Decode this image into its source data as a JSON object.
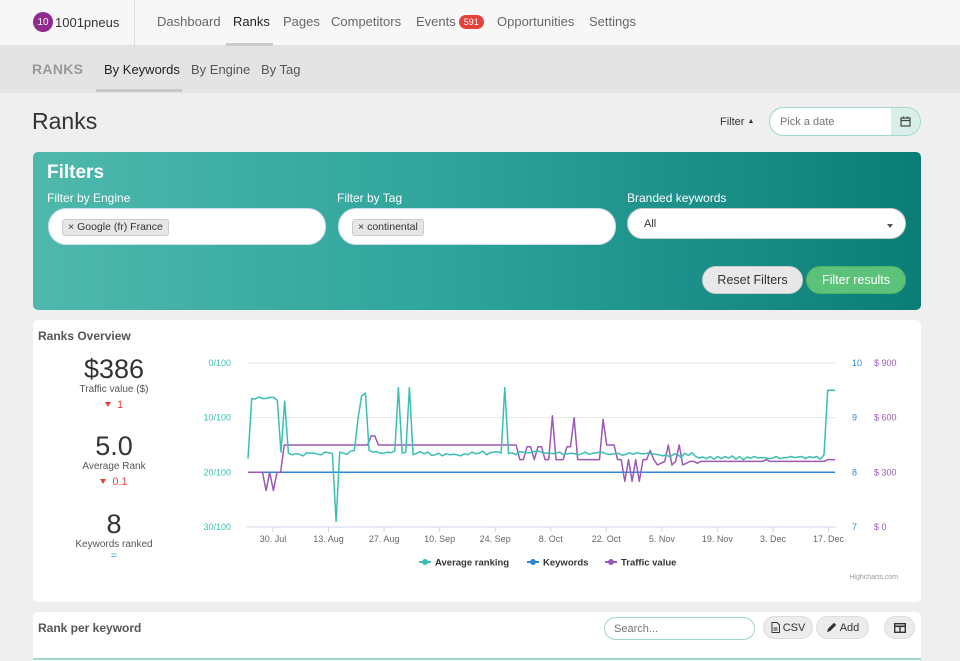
{
  "brand": {
    "badge": "10",
    "name": "1001pneus"
  },
  "nav": {
    "items": [
      {
        "label": "Dashboard"
      },
      {
        "label": "Ranks"
      },
      {
        "label": "Pages"
      },
      {
        "label": "Competitors"
      },
      {
        "label": "Events",
        "badge": "591"
      },
      {
        "label": "Opportunities"
      },
      {
        "label": "Settings"
      }
    ],
    "active": "Ranks"
  },
  "subnav": {
    "title": "RANKS",
    "items": [
      {
        "label": "By Keywords"
      },
      {
        "label": "By Engine"
      },
      {
        "label": "By Tag"
      }
    ],
    "active": "By Keywords"
  },
  "page": {
    "title": "Ranks",
    "filter_toggle": "Filter",
    "date_placeholder": "Pick a date"
  },
  "filters": {
    "title": "Filters",
    "engine_label": "Filter by Engine",
    "engine_tag": "Google (fr) France",
    "tag_label": "Filter by Tag",
    "tag_value": "continental",
    "branded_label": "Branded keywords",
    "branded_value": "All",
    "reset_label": "Reset Filters",
    "apply_label": "Filter results"
  },
  "overview": {
    "title": "Ranks Overview",
    "traffic_value": "$386",
    "traffic_label": "Traffic value ($)",
    "traffic_delta": "1",
    "avg_rank": "5.0",
    "avg_rank_label": "Average Rank",
    "avg_rank_delta": "0.1",
    "keywords_ranked": "8",
    "keywords_label": "Keywords ranked",
    "keywords_delta": "="
  },
  "chart_data": {
    "type": "line",
    "x_ticks": [
      "30. Jul",
      "13. Aug",
      "27. Aug",
      "10. Sep",
      "24. Sep",
      "8. Oct",
      "22. Oct",
      "5. Nov",
      "19. Nov",
      "3. Dec",
      "17. Dec"
    ],
    "y_left_ticks": [
      "0/100",
      "10/100",
      "20/100",
      "30/100"
    ],
    "y_mid_ticks": [
      "10",
      "9",
      "8",
      "7"
    ],
    "y_right_ticks": [
      "$ 900",
      "$ 600",
      "$ 300",
      "$ 0"
    ],
    "axes": {
      "average_ranking": {
        "min": 0,
        "max": 30,
        "reversed": true
      },
      "keywords": {
        "min": 7,
        "max": 10
      },
      "traffic_value": {
        "min": 0,
        "max": 900
      }
    },
    "x_range": [
      "2023-07-23",
      "2023-12-19"
    ],
    "series": [
      {
        "name": "Average ranking",
        "color": "#3bbfb4",
        "values": [
          17.5,
          6.5,
          6.6,
          6.2,
          6.5,
          6.5,
          6.3,
          6.3,
          6.8,
          16.3,
          7,
          16.5,
          16.8,
          16.6,
          16.7,
          17,
          16.4,
          16.5,
          16.5,
          16.7,
          16.8,
          16.3,
          16.4,
          16.6,
          29,
          16.3,
          16.5,
          16.7,
          16.1,
          16,
          10,
          6,
          5.5,
          16,
          16.3,
          16.2,
          16.5,
          16.5,
          16.3,
          16.4,
          16.1,
          4.5,
          16.5,
          16.3,
          4.5,
          16.8,
          16.5,
          16.2,
          16.6,
          16.3,
          16.9,
          16.8,
          16.5,
          17,
          16.6,
          16.8,
          16.7,
          16.8,
          17,
          16.6,
          16.8,
          16.3,
          16.6,
          16.5,
          16.1,
          16.8,
          16.4,
          16.3,
          16.2,
          16.5,
          4.5,
          16.6,
          16.4,
          16.8,
          16.2,
          16.3,
          16.4,
          16.4,
          16.2,
          16.1,
          16.3,
          16.5,
          16.4,
          16.6,
          16.5,
          16.3,
          16.8,
          16.6,
          16.5,
          16.6,
          16.8,
          16.6,
          16.3,
          16.7,
          16.5,
          16.4,
          16.3,
          16.4,
          16.7,
          16.7,
          16.6,
          16.5,
          16.9,
          16.7,
          16.4,
          16.7,
          16.4,
          16.6,
          16.6,
          16.5,
          16.6,
          16.7,
          16.8,
          17,
          16.8,
          17.2,
          16.7,
          16.6,
          17.3,
          16.5,
          16.9,
          16.4,
          17.1,
          17.4,
          17.2,
          17.5,
          17.1,
          17.6,
          17.1,
          17.5,
          17.1,
          17.4,
          17,
          17.6,
          17.1,
          17.7,
          17.2,
          17.4,
          17.1,
          17.4,
          17.3,
          17.3,
          17.5,
          17.4,
          17.1,
          17.5,
          17.3,
          17.3,
          17.1,
          17.3,
          17.2,
          17.1,
          17.5,
          17.1,
          17.3,
          17.1,
          17.6,
          16.8,
          5,
          5,
          5
        ]
      },
      {
        "name": "Keywords",
        "color": "#2e86d6",
        "values": [
          8,
          8
        ]
      },
      {
        "name": "Traffic value",
        "color": "#9b59b6",
        "values": [
          300,
          300,
          300,
          300,
          300,
          200,
          300,
          200,
          300,
          300,
          450,
          450,
          450,
          450,
          450,
          450,
          450,
          450,
          450,
          450,
          450,
          450,
          450,
          450,
          450,
          450,
          450,
          450,
          450,
          450,
          450,
          450,
          450,
          450,
          500,
          500,
          450,
          450,
          450,
          450,
          450,
          450,
          450,
          450,
          450,
          450,
          450,
          450,
          450,
          450,
          450,
          450,
          450,
          450,
          450,
          450,
          450,
          450,
          450,
          450,
          450,
          450,
          450,
          450,
          450,
          450,
          450,
          450,
          450,
          450,
          450,
          450,
          450,
          450,
          450,
          370,
          370,
          440,
          440,
          370,
          440,
          440,
          370,
          370,
          610,
          370,
          370,
          370,
          440,
          440,
          600,
          370,
          370,
          370,
          370,
          370,
          370,
          370,
          590,
          450,
          450,
          450,
          370,
          370,
          250,
          370,
          250,
          370,
          250,
          370,
          370,
          420,
          370,
          340,
          350,
          360,
          450,
          340,
          360,
          450,
          340,
          350,
          360,
          360,
          350,
          360,
          360,
          360,
          360,
          360,
          360,
          360,
          360,
          360,
          360,
          360,
          360,
          360,
          360,
          360,
          360,
          360,
          360,
          370,
          360,
          360,
          360,
          360,
          360,
          360,
          360,
          360,
          360,
          360,
          360,
          360,
          360,
          360,
          360,
          360,
          370,
          370,
          370
        ]
      }
    ],
    "legend": [
      "Average ranking",
      "Keywords",
      "Traffic value"
    ],
    "legend_position": "bottom",
    "credits": "Highcharts.com"
  },
  "rank_per_keyword": {
    "title": "Rank per keyword",
    "search_placeholder": "Search...",
    "csv_label": "CSV",
    "add_label": "Add"
  }
}
